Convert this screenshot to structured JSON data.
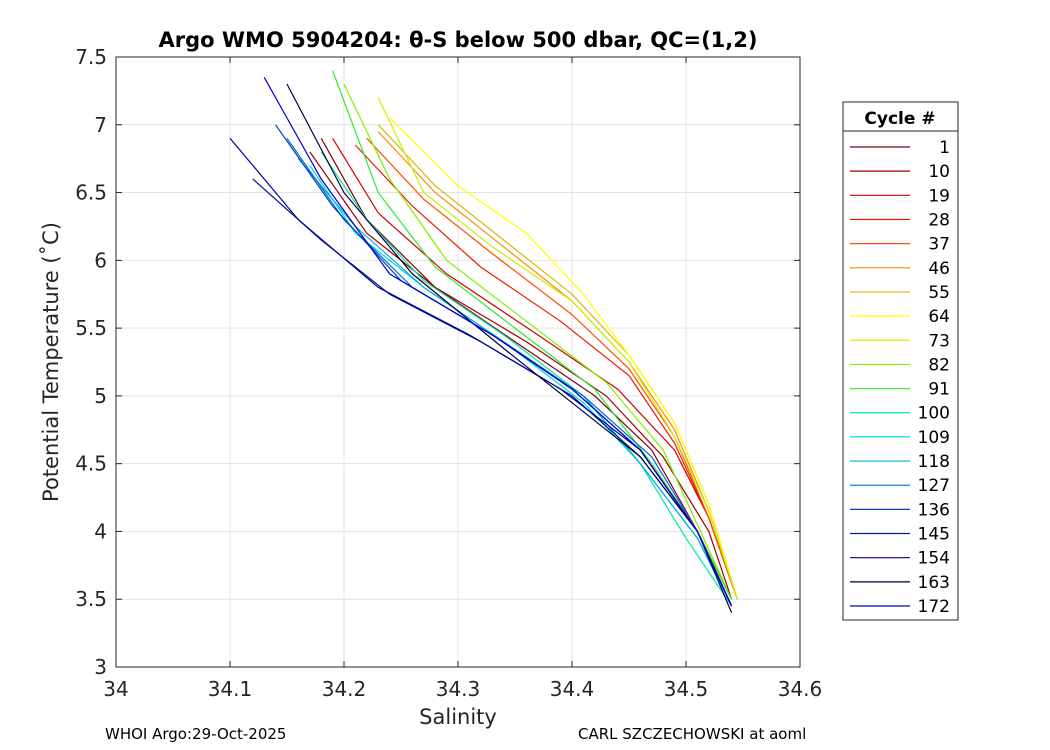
{
  "footer": {
    "left": "WHOI Argo:29-Oct-2025",
    "right": "CARL SZCZECHOWSKI at aoml"
  },
  "chart_data": {
    "type": "line",
    "title": "Argo WMO 5904204: θ-S below 500 dbar,  QC=(1,2)",
    "xlabel": "Salinity",
    "ylabel": "Potential Temperature (˚C)",
    "xlim": [
      34.0,
      34.6
    ],
    "ylim": [
      3.0,
      7.5
    ],
    "xticks": [
      "34",
      "34.1",
      "34.2",
      "34.3",
      "34.4",
      "34.5",
      "34.6"
    ],
    "yticks": [
      "3",
      "3.5",
      "4",
      "4.5",
      "5",
      "5.5",
      "6",
      "6.5",
      "7",
      "7.5"
    ],
    "grid": true,
    "legend_title": "Cycle #",
    "legend_position": "outside-right",
    "series": [
      {
        "name": "1",
        "color": "#80000f",
        "x": [
          34.18,
          34.22,
          34.28,
          34.35,
          34.42,
          34.47,
          34.51,
          34.54
        ],
        "y": [
          6.9,
          6.3,
          5.8,
          5.4,
          5.0,
          4.6,
          4.0,
          3.5
        ]
      },
      {
        "name": "10",
        "color": "#a00000",
        "x": [
          34.17,
          34.22,
          34.28,
          34.36,
          34.43,
          34.48,
          34.52,
          34.54
        ],
        "y": [
          6.8,
          6.2,
          5.8,
          5.4,
          5.0,
          4.55,
          4.0,
          3.5
        ]
      },
      {
        "name": "19",
        "color": "#d00000",
        "x": [
          34.19,
          34.23,
          34.29,
          34.37,
          34.44,
          34.49,
          34.52,
          34.545
        ],
        "y": [
          6.9,
          6.35,
          5.9,
          5.45,
          5.05,
          4.6,
          4.1,
          3.5
        ]
      },
      {
        "name": "28",
        "color": "#ee1a00",
        "x": [
          34.21,
          34.26,
          34.32,
          34.39,
          34.45,
          34.49,
          34.52,
          34.545
        ],
        "y": [
          6.85,
          6.4,
          5.95,
          5.55,
          5.15,
          4.65,
          4.1,
          3.5
        ]
      },
      {
        "name": "37",
        "color": "#ff5000",
        "x": [
          34.22,
          34.27,
          34.33,
          34.4,
          34.45,
          34.49,
          34.52,
          34.545
        ],
        "y": [
          6.9,
          6.45,
          6.05,
          5.6,
          5.2,
          4.7,
          4.1,
          3.5
        ]
      },
      {
        "name": "46",
        "color": "#ff8a00",
        "x": [
          34.23,
          34.28,
          34.34,
          34.4,
          34.45,
          34.49,
          34.52,
          34.545
        ],
        "y": [
          6.95,
          6.5,
          6.1,
          5.7,
          5.25,
          4.75,
          4.15,
          3.5
        ]
      },
      {
        "name": "55",
        "color": "#d8b800",
        "x": [
          34.23,
          34.28,
          34.34,
          34.4,
          34.45,
          34.49,
          34.52,
          34.545
        ],
        "y": [
          7.0,
          6.55,
          6.15,
          5.75,
          5.3,
          4.8,
          4.2,
          3.5
        ]
      },
      {
        "name": "64",
        "color": "#ffff00",
        "x": [
          34.24,
          34.3,
          34.36,
          34.41,
          34.45,
          34.49,
          34.52,
          34.545
        ],
        "y": [
          7.05,
          6.55,
          6.2,
          5.75,
          5.3,
          4.8,
          4.2,
          3.5
        ]
      },
      {
        "name": "73",
        "color": "#c8f000",
        "x": [
          34.23,
          34.27,
          34.33,
          34.4,
          34.45,
          34.49,
          34.52,
          34.545
        ],
        "y": [
          7.2,
          6.5,
          6.1,
          5.7,
          5.25,
          4.7,
          4.15,
          3.5
        ]
      },
      {
        "name": "82",
        "color": "#7ef000",
        "x": [
          34.2,
          34.24,
          34.29,
          34.36,
          34.43,
          34.48,
          34.51,
          34.54
        ],
        "y": [
          7.3,
          6.6,
          6.0,
          5.55,
          5.1,
          4.6,
          4.05,
          3.5
        ]
      },
      {
        "name": "91",
        "color": "#30e830",
        "x": [
          34.19,
          34.23,
          34.28,
          34.35,
          34.42,
          34.47,
          34.51,
          34.54
        ],
        "y": [
          7.4,
          6.5,
          5.95,
          5.5,
          5.05,
          4.5,
          4.0,
          3.5
        ]
      },
      {
        "name": "100",
        "color": "#00e8a0",
        "x": [
          34.18,
          34.22,
          34.27,
          34.34,
          34.41,
          34.46,
          34.5,
          34.54
        ],
        "y": [
          6.8,
          6.3,
          5.85,
          5.45,
          5.0,
          4.5,
          3.95,
          3.45
        ]
      },
      {
        "name": "109",
        "color": "#00d8e0",
        "x": [
          34.17,
          34.21,
          34.27,
          34.34,
          34.41,
          34.46,
          34.51,
          34.54
        ],
        "y": [
          6.7,
          6.2,
          5.8,
          5.4,
          4.95,
          4.5,
          3.95,
          3.45
        ]
      },
      {
        "name": "118",
        "color": "#00b0e0",
        "x": [
          34.16,
          34.21,
          34.27,
          34.34,
          34.41,
          34.46,
          34.51,
          34.54
        ],
        "y": [
          6.75,
          6.25,
          5.8,
          5.4,
          5.0,
          4.5,
          3.95,
          3.45
        ]
      },
      {
        "name": "127",
        "color": "#0070d0",
        "x": [
          34.15,
          34.2,
          34.26,
          34.34,
          34.41,
          34.47,
          34.51,
          34.54
        ],
        "y": [
          6.9,
          6.3,
          5.8,
          5.4,
          5.0,
          4.55,
          4.0,
          3.45
        ]
      },
      {
        "name": "136",
        "color": "#0040c0",
        "x": [
          34.14,
          34.19,
          34.25,
          34.33,
          34.4,
          34.46,
          34.51,
          34.54
        ],
        "y": [
          7.0,
          6.4,
          5.85,
          5.45,
          5.05,
          4.6,
          4.0,
          3.45
        ]
      },
      {
        "name": "145",
        "color": "#002080",
        "x": [
          34.12,
          34.18,
          34.24,
          34.32,
          34.4,
          34.46,
          34.51,
          34.54
        ],
        "y": [
          6.6,
          6.15,
          5.75,
          5.4,
          5.0,
          4.55,
          4.0,
          3.45
        ]
      },
      {
        "name": "154",
        "color": "#0000a0",
        "x": [
          34.1,
          34.16,
          34.23,
          34.31,
          34.39,
          34.46,
          34.51,
          34.54
        ],
        "y": [
          6.9,
          6.3,
          5.8,
          5.45,
          5.05,
          4.6,
          4.0,
          3.45
        ]
      },
      {
        "name": "163",
        "color": "#000040",
        "x": [
          34.15,
          34.2,
          34.26,
          34.34,
          34.4,
          34.46,
          34.51,
          34.54
        ],
        "y": [
          7.3,
          6.5,
          5.9,
          5.35,
          4.95,
          4.55,
          4.0,
          3.4
        ]
      },
      {
        "name": "172",
        "color": "#0000d0",
        "x": [
          34.13,
          34.18,
          34.24,
          34.33,
          34.4,
          34.46,
          34.51,
          34.54
        ],
        "y": [
          7.35,
          6.6,
          5.9,
          5.45,
          5.05,
          4.6,
          4.0,
          3.45
        ]
      }
    ]
  }
}
